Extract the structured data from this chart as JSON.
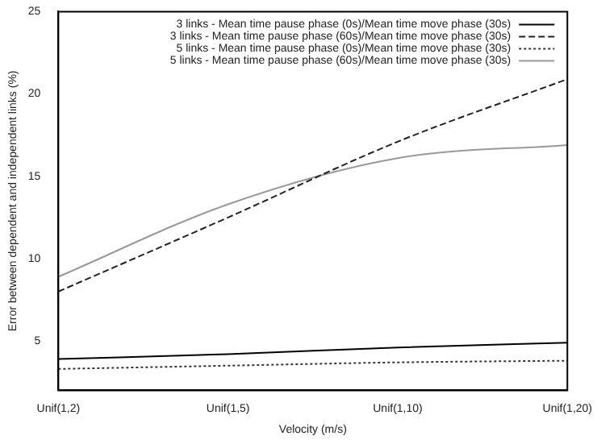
{
  "chart_data": {
    "type": "line",
    "xlabel": "Velocity (m/s)",
    "ylabel": "Error between dependent and independent links (%)",
    "categories": [
      "Unif(1,2)",
      "Unif(1,5)",
      "Unif(1,10)",
      "Unif(1,20)"
    ],
    "series": [
      {
        "name": "3 links - Mean time pause phase (0s)/Mean time move phase (30s)",
        "color": "#000000",
        "line_style": "solid",
        "values": [
          3.9,
          4.2,
          4.6,
          4.9
        ]
      },
      {
        "name": "3 links - Mean time pause phase (60s)/Mean time move phase (30s)",
        "color": "#222222",
        "line_style": "dashed",
        "values": [
          8.0,
          12.5,
          17.1,
          20.9
        ]
      },
      {
        "name": "5 links - Mean time pause phase (0s)/Mean time move phase (30s)",
        "color": "#333333",
        "line_style": "dotted",
        "values": [
          3.3,
          3.5,
          3.7,
          3.8
        ]
      },
      {
        "name": "5 links - Mean time pause phase (60s)/Mean time move phase (30s)",
        "color": "#999999",
        "line_style": "solid",
        "values": [
          8.9,
          13.3,
          16.1,
          16.9
        ]
      }
    ],
    "ylim": [
      2,
      25
    ],
    "yticks": [
      5,
      10,
      15,
      20,
      25
    ],
    "grid": false,
    "legend": "top right",
    "marker": "none"
  }
}
